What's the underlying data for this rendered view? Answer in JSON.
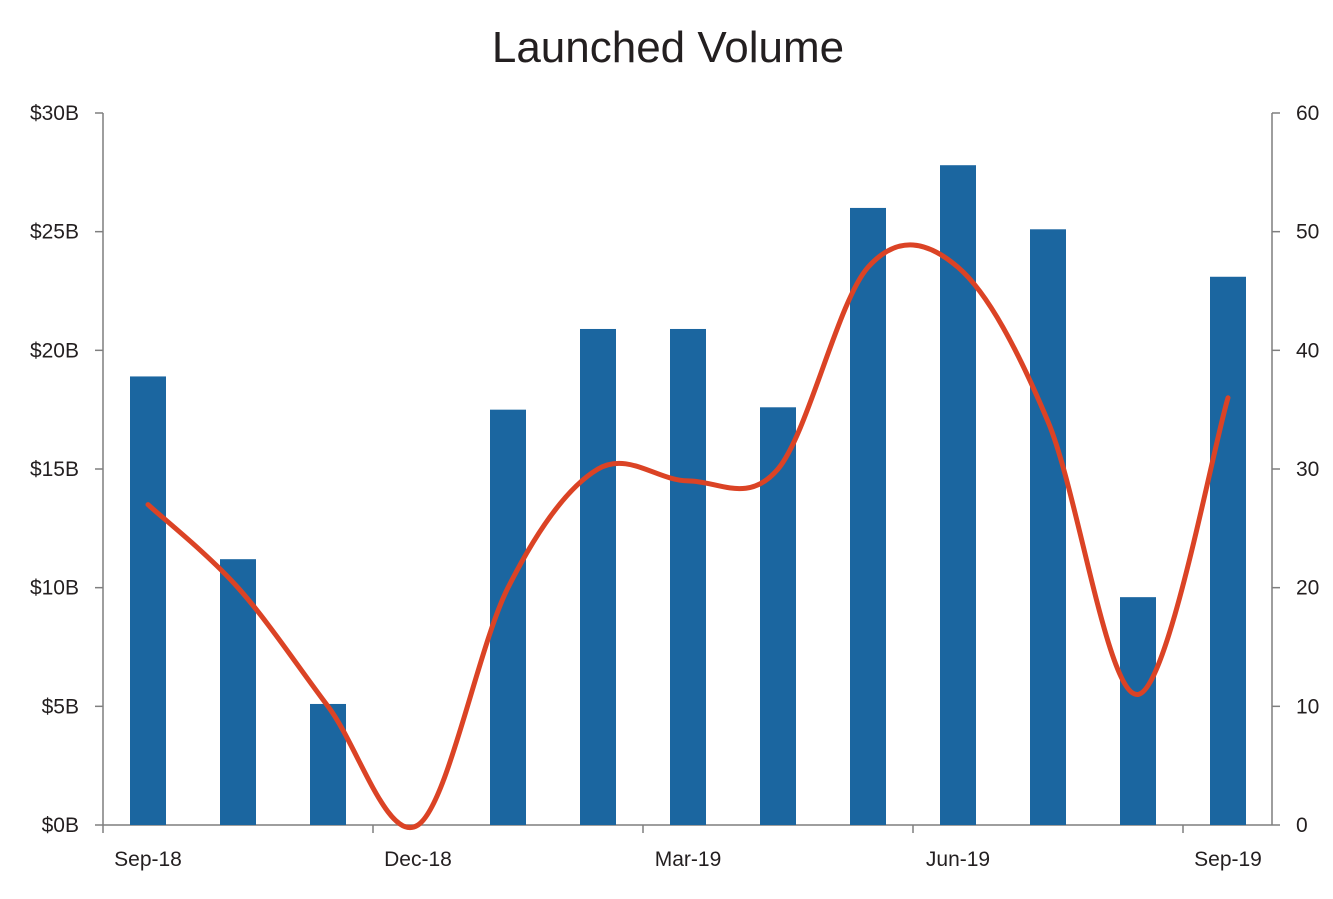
{
  "chart_data": {
    "type": "bar",
    "title": "Launched Volume",
    "x": [
      "2018-09",
      "2018-10",
      "2018-11",
      "2018-12",
      "2019-01",
      "2019-02",
      "2019-03",
      "2019-04",
      "2019-05",
      "2019-06",
      "2019-07",
      "2019-08",
      "2019-09"
    ],
    "x_tick_labels": [
      "Sep-18",
      "Dec-18",
      "Mar-19",
      "Jun-19",
      "Sep-19"
    ],
    "series": [
      {
        "chart_type": "bar",
        "axis": "left",
        "color": "#1b66a0",
        "values": [
          18.9,
          11.2,
          5.1,
          0,
          17.5,
          20.9,
          20.9,
          17.6,
          26.0,
          27.8,
          25.1,
          9.6,
          23.1
        ]
      },
      {
        "chart_type": "line",
        "axis": "right",
        "smooth": true,
        "color": "#db4325",
        "values": [
          27,
          20,
          10,
          0,
          20,
          30,
          29,
          30,
          47,
          47,
          34,
          11,
          36
        ]
      }
    ],
    "y_left": {
      "ylim": [
        0,
        30
      ],
      "ticks": [
        0,
        5,
        10,
        15,
        20,
        25,
        30
      ],
      "tick_labels": [
        "$0B",
        "$5B",
        "$10B",
        "$15B",
        "$20B",
        "$25B",
        "$30B"
      ]
    },
    "y_right": {
      "ylim": [
        0,
        60
      ],
      "ticks": [
        0,
        10,
        20,
        30,
        40,
        50,
        60
      ],
      "tick_labels": [
        "0",
        "10",
        "20",
        "30",
        "40",
        "50",
        "60"
      ]
    },
    "grid": false,
    "legend": "none"
  }
}
